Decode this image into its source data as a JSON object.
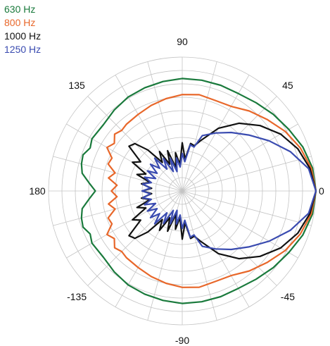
{
  "chart_data": {
    "type": "line",
    "subtype": "polar",
    "angle_unit": "degrees",
    "angle_tick_labels": [
      {
        "angle": 0,
        "label": "0"
      },
      {
        "angle": 45,
        "label": "45"
      },
      {
        "angle": 90,
        "label": "90"
      },
      {
        "angle": 135,
        "label": "135"
      },
      {
        "angle": 180,
        "label": "180"
      },
      {
        "angle": -135,
        "label": "-135"
      },
      {
        "angle": -90,
        "label": "-90"
      },
      {
        "angle": -45,
        "label": "-45"
      }
    ],
    "radial_range": [
      0,
      10
    ],
    "radial_ring_values": [
      1,
      2,
      3,
      4,
      5,
      6,
      7,
      8,
      9,
      10
    ],
    "angular_grid_step_deg": 15,
    "grid": true,
    "legend_position": "top-left",
    "series": [
      {
        "name": "630 Hz",
        "color": "#1a7a3c",
        "angles": [
          0,
          10,
          20,
          30,
          40,
          50,
          60,
          70,
          80,
          90,
          100,
          110,
          120,
          130,
          140,
          150,
          155,
          160,
          165,
          170,
          175,
          180
        ],
        "values": [
          10,
          9.9,
          9.6,
          9.2,
          8.9,
          8.6,
          8.4,
          8.4,
          8.4,
          8.4,
          8.3,
          8.2,
          8.1,
          7.9,
          7.7,
          7.8,
          7.6,
          7.9,
          7.8,
          7.6,
          7.0,
          6.5
        ]
      },
      {
        "name": "800 Hz",
        "color": "#e8672a",
        "angles": [
          0,
          10,
          20,
          30,
          40,
          50,
          60,
          70,
          80,
          90,
          100,
          110,
          120,
          130,
          135,
          140,
          145,
          150,
          155,
          160,
          165,
          170,
          175,
          180
        ],
        "values": [
          10,
          9.8,
          9.4,
          8.9,
          8.3,
          7.8,
          7.3,
          7.2,
          7.3,
          7.2,
          7.0,
          6.8,
          6.6,
          6.5,
          6.4,
          6.6,
          6.2,
          6.5,
          5.8,
          5.9,
          5.2,
          5.6,
          4.9,
          5.3
        ]
      },
      {
        "name": "1000 Hz",
        "color": "#111111",
        "angles": [
          0,
          10,
          20,
          30,
          40,
          50,
          60,
          70,
          75,
          80,
          85,
          90,
          95,
          100,
          105,
          110,
          115,
          120,
          125,
          130,
          135,
          140,
          145,
          150,
          155,
          160,
          165,
          170,
          175,
          180
        ],
        "values": [
          10,
          9.7,
          9.2,
          8.5,
          7.6,
          6.6,
          5.4,
          4.0,
          3.5,
          3.6,
          2.4,
          3.6,
          2.0,
          2.9,
          1.8,
          3.2,
          2.2,
          3.4,
          2.6,
          4.0,
          5.0,
          5.2,
          3.8,
          4.3,
          3.0,
          3.6,
          2.5,
          3.1,
          2.3,
          3.0
        ]
      },
      {
        "name": "1250 Hz",
        "color": "#3a4bb0",
        "angles": [
          0,
          10,
          20,
          30,
          40,
          50,
          60,
          70,
          75,
          80,
          85,
          90,
          95,
          100,
          105,
          110,
          115,
          120,
          125,
          130,
          135,
          140,
          145,
          150,
          155,
          160,
          165,
          170,
          175,
          180
        ],
        "values": [
          10,
          9.6,
          8.6,
          7.5,
          6.5,
          5.7,
          5.0,
          4.4,
          3.4,
          3.5,
          2.2,
          2.8,
          1.8,
          2.5,
          1.5,
          2.6,
          1.6,
          2.8,
          2.0,
          3.2,
          2.4,
          3.1,
          2.3,
          3.0,
          2.2,
          3.0,
          2.4,
          3.0,
          2.4,
          3.0
        ]
      }
    ]
  }
}
